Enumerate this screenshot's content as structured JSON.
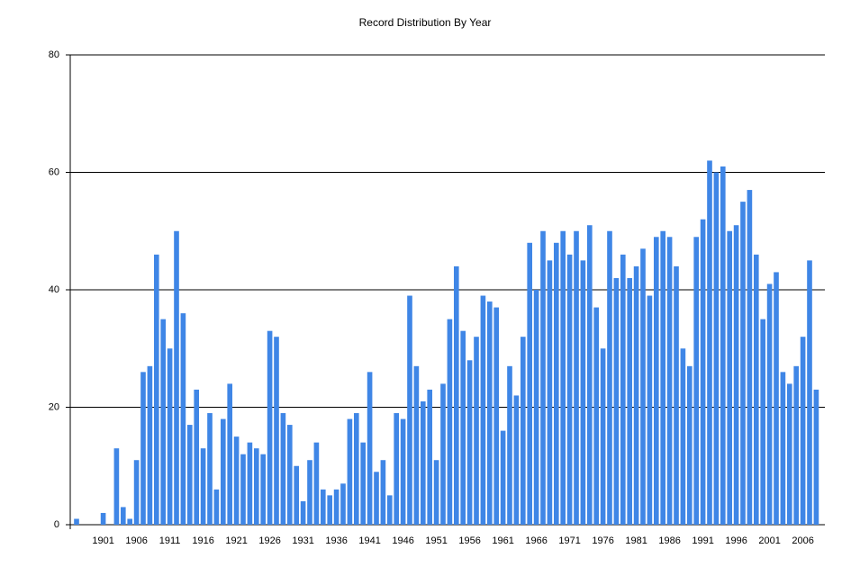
{
  "chart_data": {
    "type": "bar",
    "title": "Record Distribution By Year",
    "categories": [
      null,
      null,
      null,
      null,
      "1901",
      null,
      null,
      null,
      null,
      "1906",
      null,
      null,
      null,
      null,
      "1911",
      null,
      null,
      null,
      null,
      "1916",
      null,
      null,
      null,
      null,
      "1921",
      null,
      null,
      null,
      null,
      "1926",
      null,
      null,
      null,
      null,
      "1931",
      null,
      null,
      null,
      null,
      "1936",
      null,
      null,
      null,
      null,
      "1941",
      null,
      null,
      null,
      null,
      "1946",
      null,
      null,
      null,
      null,
      "1951",
      null,
      null,
      null,
      null,
      "1956",
      null,
      null,
      null,
      null,
      "1961",
      null,
      null,
      null,
      null,
      "1966",
      null,
      null,
      null,
      null,
      "1971",
      null,
      null,
      null,
      null,
      "1976",
      null,
      null,
      null,
      null,
      "1981",
      null,
      null,
      null,
      null,
      "1986",
      null,
      null,
      null,
      null,
      "1991",
      null,
      null,
      null,
      null,
      "1996",
      null,
      null,
      null,
      null,
      "2001",
      null,
      null,
      null,
      null,
      "2006",
      null,
      null
    ],
    "values": [
      1,
      0,
      0,
      0,
      2,
      0,
      13,
      3,
      1,
      11,
      26,
      27,
      46,
      35,
      30,
      50,
      36,
      17,
      23,
      13,
      19,
      6,
      18,
      24,
      15,
      12,
      14,
      13,
      12,
      33,
      32,
      19,
      17,
      10,
      4,
      11,
      14,
      6,
      5,
      6,
      7,
      18,
      19,
      14,
      26,
      9,
      11,
      5,
      19,
      18,
      39,
      27,
      21,
      23,
      11,
      24,
      35,
      44,
      33,
      28,
      32,
      39,
      38,
      37,
      16,
      27,
      22,
      32,
      48,
      40,
      50,
      45,
      48,
      50,
      46,
      50,
      45,
      51,
      37,
      30,
      50,
      42,
      46,
      42,
      44,
      47,
      39,
      49,
      50,
      49,
      44,
      30,
      27,
      49,
      52,
      62,
      60,
      61,
      50,
      51,
      55,
      57,
      46,
      35,
      41,
      43,
      26,
      24,
      27,
      32,
      45,
      23
    ],
    "color": "#3f86e6",
    "ylim": [
      0,
      80
    ],
    "yticks": [
      0,
      20,
      40,
      60,
      80
    ],
    "grid": true
  }
}
